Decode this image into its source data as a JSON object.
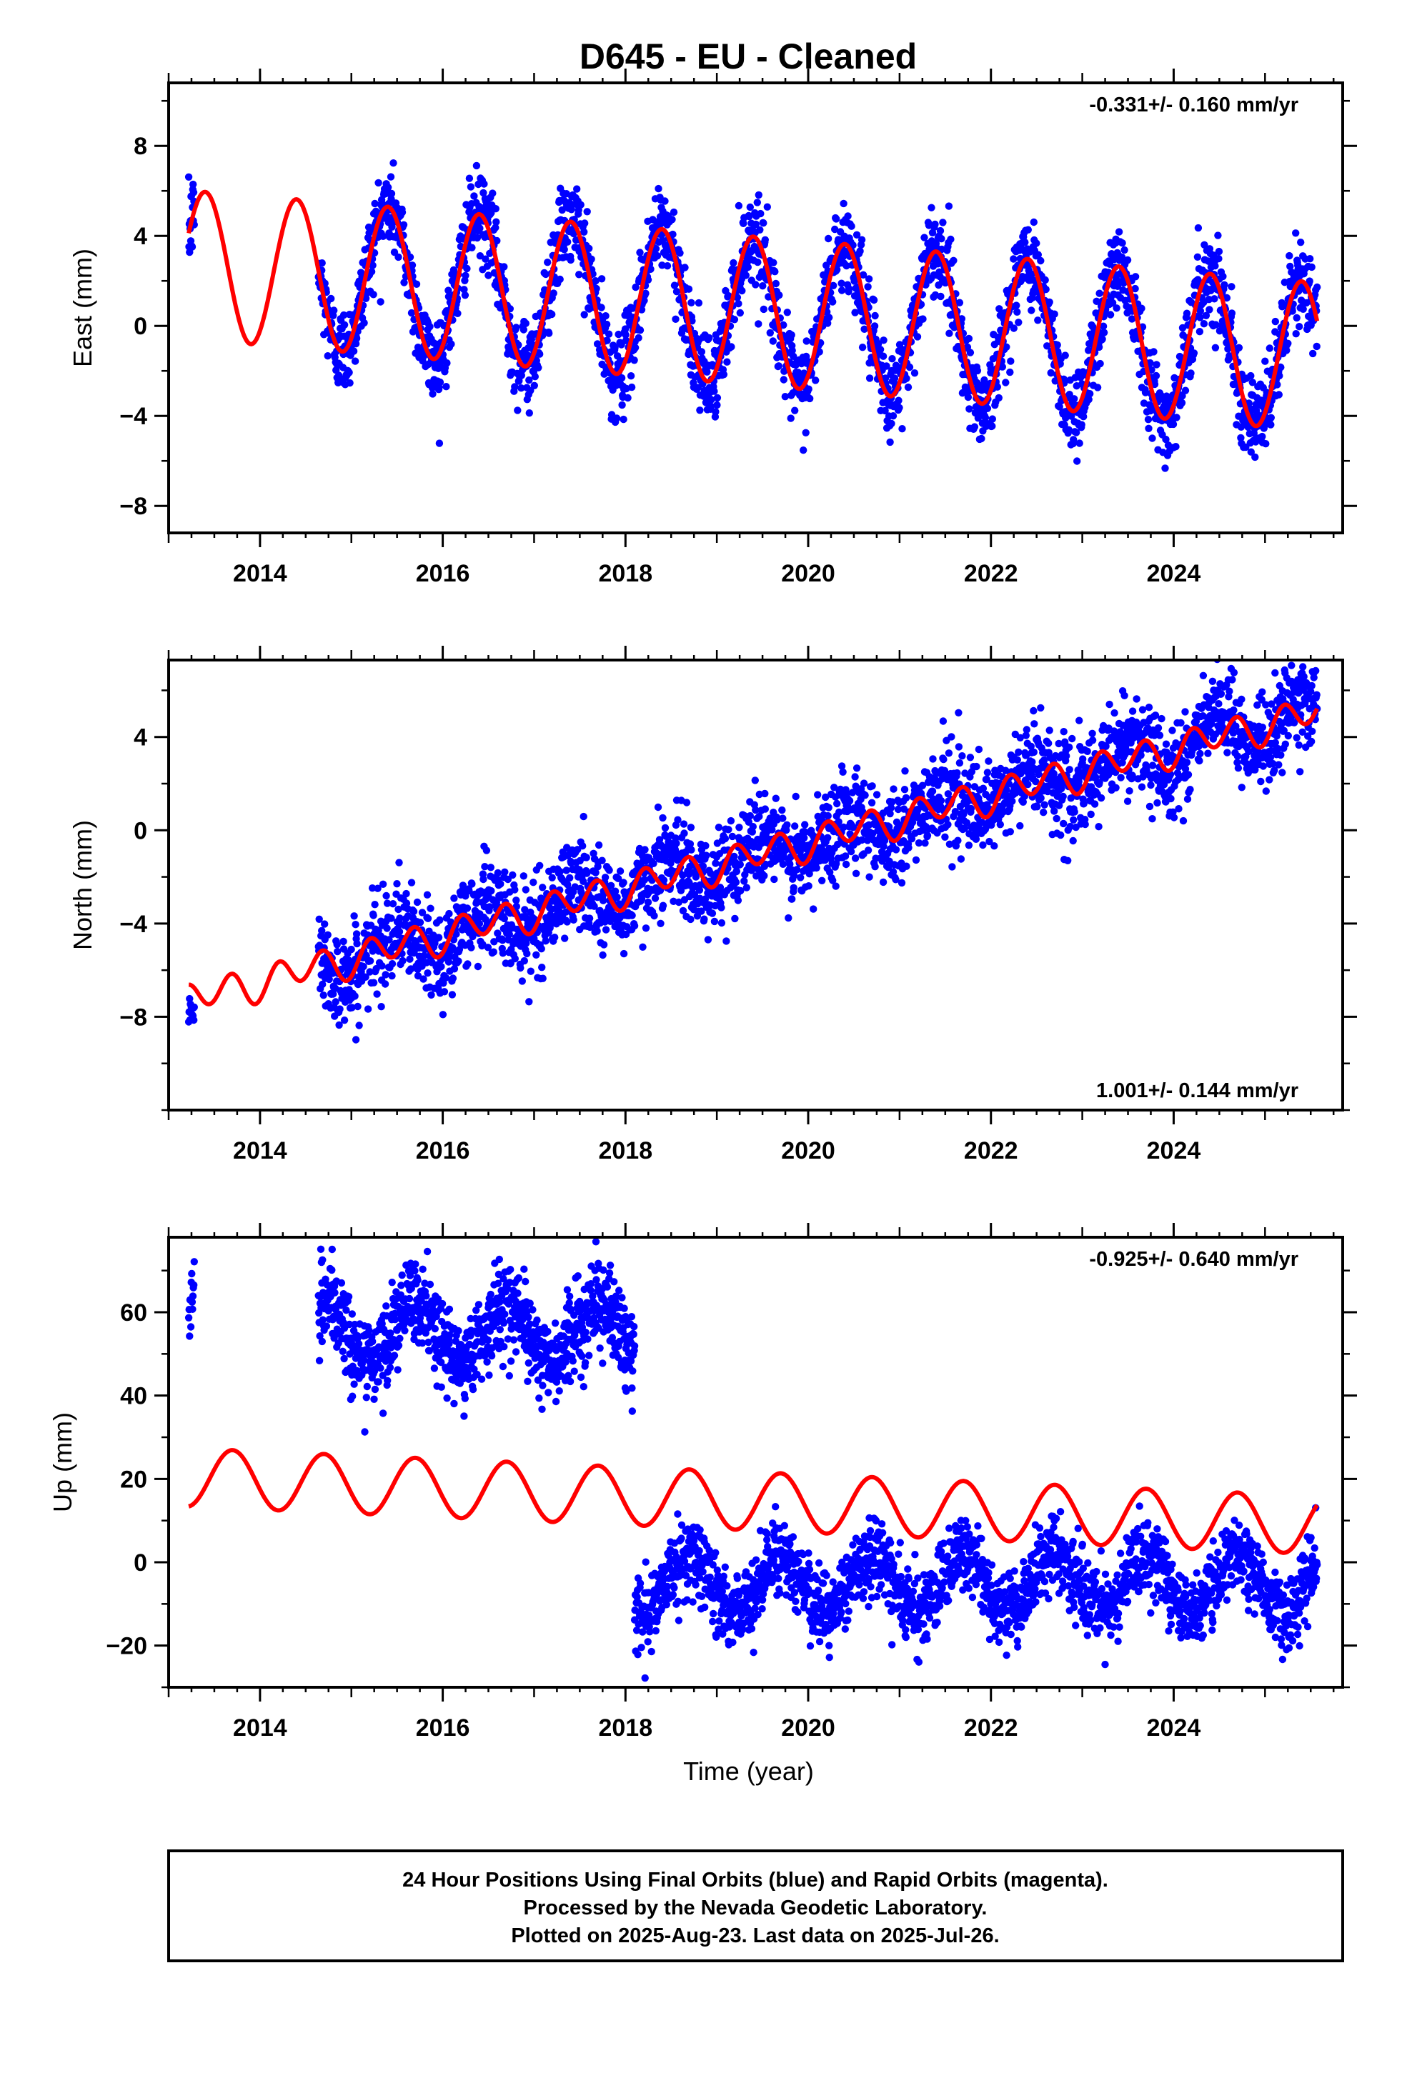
{
  "title": "D645  - EU - Cleaned",
  "colors": {
    "data": "#0000ff",
    "model": "#ff0000",
    "frame": "#000000"
  },
  "footer": {
    "line1": "24 Hour Positions Using Final Orbits (blue) and Rapid Orbits (magenta).",
    "line2": "Processed by the Nevada Geodetic Laboratory.",
    "line3": "Plotted on 2025-Aug-23. Last data on 2025-Jul-26."
  },
  "chart_data": [
    {
      "type": "scatter",
      "component": "east",
      "ylabel": "East (mm)",
      "xlabel": "",
      "xlim": [
        2013.0,
        2025.85
      ],
      "ylim": [
        -9.2,
        10.8
      ],
      "xticks": [
        "2014",
        "2016",
        "2018",
        "2020",
        "2022",
        "2024"
      ],
      "yticks": [
        "8",
        "4",
        "0",
        "−4",
        "−8"
      ],
      "rate_label": "-0.331+/- 0.160 mm/yr",
      "rate_position": "top-right",
      "model": {
        "description": "linear trend plus annual sinusoid",
        "start": 2013.22,
        "end": 2025.57,
        "ref_epoch": 2019.0,
        "offset_mm": 0.8,
        "trend_mm_per_yr": -0.331,
        "annual_amplitude_mm": 3.3,
        "annual_peak_fraction": 0.4,
        "semiannual_amplitude_mm": 0.0
      },
      "data_segments": [
        {
          "start": 2013.22,
          "end": 2013.28,
          "offset_mm": 0.8,
          "trend_mm_per_yr": -0.331,
          "annual_amplitude_mm": 3.3,
          "annual_peak_fraction": 0.4,
          "scatter_mm": 0.9,
          "points": 20
        },
        {
          "start": 2014.64,
          "end": 2025.57,
          "offset_mm": 0.8,
          "trend_mm_per_yr": -0.331,
          "annual_amplitude_mm": 3.3,
          "annual_peak_fraction": 0.4,
          "scatter_mm": 0.95,
          "points": 2800
        }
      ]
    },
    {
      "type": "scatter",
      "component": "north",
      "ylabel": "North (mm)",
      "xlabel": "",
      "xlim": [
        2013.0,
        2025.85
      ],
      "ylim": [
        -12.0,
        7.3
      ],
      "xticks": [
        "2014",
        "2016",
        "2018",
        "2020",
        "2022",
        "2024"
      ],
      "yticks": [
        "4",
        "0",
        "−4",
        "−8"
      ],
      "rate_label": "1.001+/- 0.144 mm/yr",
      "rate_position": "bottom-right",
      "model": {
        "description": "linear trend plus annual and semiannual sinusoids",
        "start": 2013.22,
        "end": 2025.57,
        "ref_epoch": 2019.0,
        "offset_mm": -1.5,
        "trend_mm_per_yr": 1.001,
        "annual_amplitude_mm": 0.25,
        "annual_peak_fraction": 0.45,
        "semiannual_amplitude_mm": 0.65,
        "semiannual_peak_fraction": 0.2
      },
      "data_segments": [
        {
          "start": 2013.22,
          "end": 2013.28,
          "offset_mm": -2.2,
          "trend_mm_per_yr": 1.001,
          "annual_amplitude_mm": 0.0,
          "annual_peak_fraction": 0.0,
          "scatter_mm": 0.6,
          "points": 14
        },
        {
          "start": 2014.64,
          "end": 2025.57,
          "offset_mm": -1.5,
          "trend_mm_per_yr": 1.001,
          "annual_amplitude_mm": 0.8,
          "annual_peak_fraction": 0.45,
          "scatter_mm": 1.0,
          "points": 2800
        }
      ]
    },
    {
      "type": "scatter",
      "component": "up",
      "ylabel": "Up (mm)",
      "xlabel": "Time (year)",
      "xlim": [
        2013.0,
        2025.85
      ],
      "ylim": [
        -30.0,
        78.0
      ],
      "xticks": [
        "2014",
        "2016",
        "2018",
        "2020",
        "2022",
        "2024"
      ],
      "yticks": [
        "60",
        "40",
        "20",
        "0",
        "−20"
      ],
      "rate_label": "-0.925+/- 0.640 mm/yr",
      "rate_position": "top-right",
      "model": {
        "description": "linear trend plus annual sinusoid",
        "start": 2013.22,
        "end": 2025.57,
        "ref_epoch": 2019.0,
        "offset_mm": 15.0,
        "trend_mm_per_yr": -0.925,
        "annual_amplitude_mm": 7.0,
        "annual_peak_fraction": 0.7,
        "semiannual_amplitude_mm": 0.0
      },
      "data_segments": [
        {
          "start": 2013.22,
          "end": 2013.28,
          "offset_mm": 63.0,
          "trend_mm_per_yr": 0.0,
          "annual_amplitude_mm": 0.0,
          "annual_peak_fraction": 0.0,
          "scatter_mm": 4.0,
          "points": 14
        },
        {
          "start": 2014.64,
          "end": 2018.1,
          "offset_mm": 55.0,
          "trend_mm_per_yr": 0.0,
          "annual_amplitude_mm": 7.0,
          "annual_peak_fraction": 0.7,
          "scatter_mm": 5.0,
          "points": 950
        },
        {
          "start": 2018.1,
          "end": 2025.57,
          "offset_mm": -5.0,
          "trend_mm_per_yr": 0.0,
          "annual_amplitude_mm": 7.0,
          "annual_peak_fraction": 0.7,
          "scatter_mm": 4.5,
          "points": 1900
        }
      ]
    }
  ]
}
